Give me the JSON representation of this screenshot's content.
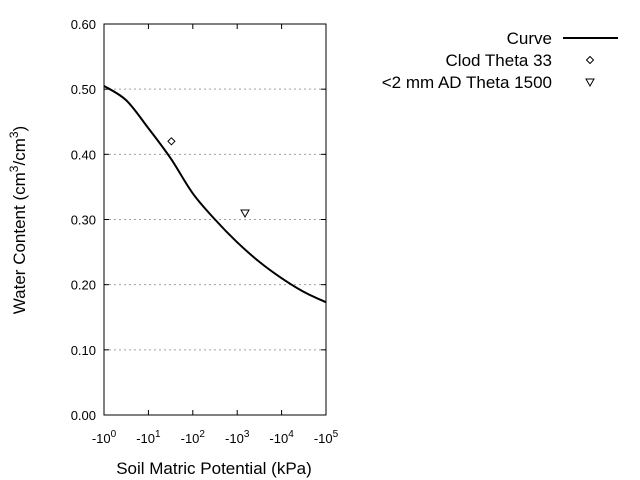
{
  "chart_data": {
    "type": "line",
    "title": "",
    "xlabel": "Soil Matric Potential (kPa)",
    "ylabel": "Water Content (cm³/cm³)",
    "ylabel_parts": {
      "pre": "Water Content (cm",
      "sup1": "3",
      "mid": "/cm",
      "sup2": "3",
      "post": ")"
    },
    "x_scale": "log",
    "xlim": [
      -1,
      -100000
    ],
    "ylim": [
      0,
      0.6
    ],
    "x_ticks": [
      {
        "base": "-10",
        "exp": "0"
      },
      {
        "base": "-10",
        "exp": "1"
      },
      {
        "base": "-10",
        "exp": "2"
      },
      {
        "base": "-10",
        "exp": "3"
      },
      {
        "base": "-10",
        "exp": "4"
      },
      {
        "base": "-10",
        "exp": "5"
      }
    ],
    "y_ticks": [
      "0.00",
      "0.10",
      "0.20",
      "0.30",
      "0.40",
      "0.50",
      "0.60"
    ],
    "grid": "horizontal dotted",
    "legend_placement": "top-right outside",
    "series": [
      {
        "name": "Curve",
        "style": "line",
        "x": [
          -1,
          -3.16,
          -10,
          -31.6,
          -100,
          -316,
          -1000,
          -3162,
          -10000,
          -31623,
          -100000
        ],
        "y": [
          0.505,
          0.483,
          0.44,
          0.394,
          0.34,
          0.3,
          0.265,
          0.235,
          0.21,
          0.189,
          0.173
        ]
      },
      {
        "name": "Clod Theta 33",
        "style": "diamond",
        "x": [
          -33
        ],
        "y": [
          0.42
        ]
      },
      {
        "name": "<2 mm AD Theta 1500",
        "style": "triangle-down",
        "x": [
          -1500
        ],
        "y": [
          0.31
        ]
      }
    ],
    "colors": {
      "line": "#000000",
      "grid": "#a0a0a0"
    }
  }
}
